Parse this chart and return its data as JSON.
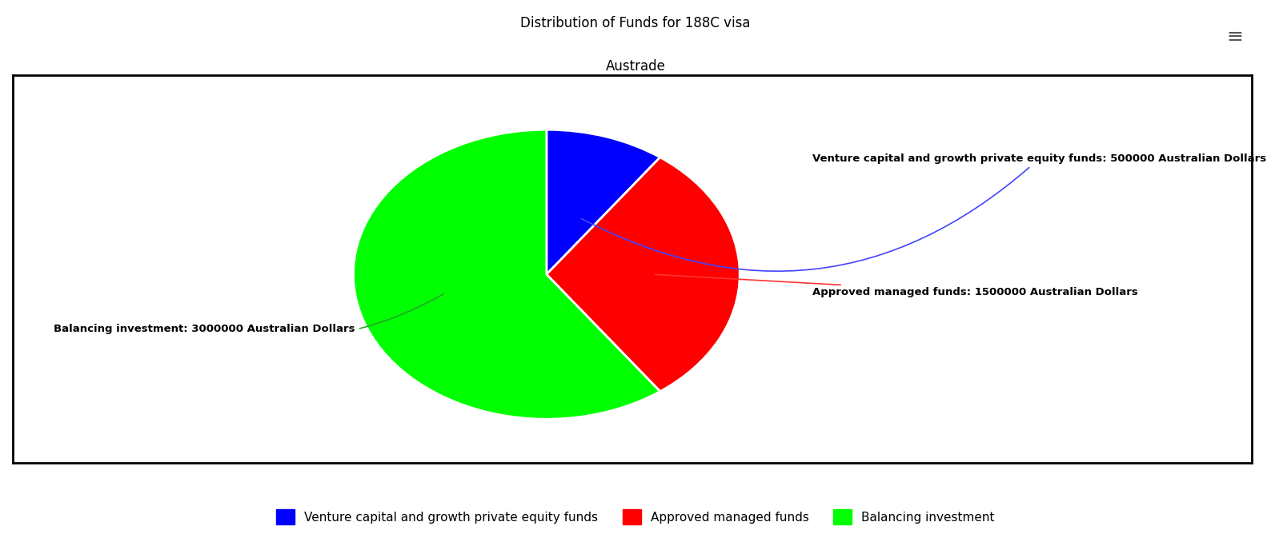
{
  "title_line1": "Distribution of Funds for 188C visa",
  "title_line2": "Austrade",
  "slices": [
    {
      "label": "Venture capital and growth private equity funds",
      "value": 500000,
      "color": "#0000FF"
    },
    {
      "label": "Approved managed funds",
      "value": 1500000,
      "color": "#FF0000"
    },
    {
      "label": "Balancing investment",
      "value": 3000000,
      "color": "#00FF00"
    }
  ],
  "annotation_labels": [
    "Venture capital and growth private equity funds: 500000 Australian Dollars",
    "Approved managed funds: 1500000 Australian Dollars",
    "Balancing investment: 3000000 Australian Dollars"
  ],
  "annotation_colors": [
    "#0000FF",
    "#FF0000",
    "#00FF00"
  ],
  "background_color": "#ffffff",
  "chart_bg": "#ffffff",
  "title_fontsize": 12,
  "legend_fontsize": 11
}
